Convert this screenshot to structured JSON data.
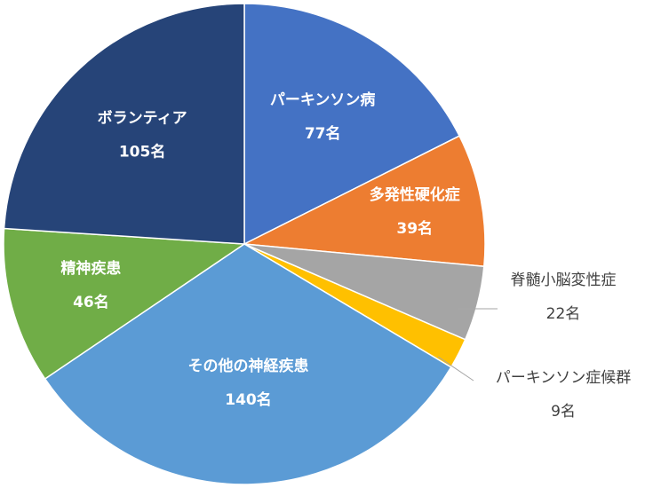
{
  "chart_data": {
    "type": "pie",
    "title": "",
    "unit": "名",
    "slices": [
      {
        "name": "パーキンソン病",
        "value": 77,
        "label": "77名",
        "color": "#4472C4"
      },
      {
        "name": "多発性硬化症",
        "value": 39,
        "label": "39名",
        "color": "#ED7D31"
      },
      {
        "name": "脊髄小脳変性症",
        "value": 22,
        "label": "22名",
        "color": "#A5A5A5"
      },
      {
        "name": "パーキンソン症候群",
        "value": 9,
        "label": "9名",
        "color": "#FFC000"
      },
      {
        "name": "その他の神経疾患",
        "value": 140,
        "label": "140名",
        "color": "#5B9BD5"
      },
      {
        "name": "精神疾患",
        "value": 46,
        "label": "46名",
        "color": "#70AD47"
      },
      {
        "name": "ボランティア",
        "value": 105,
        "label": "105名",
        "color": "#264478"
      }
    ]
  }
}
